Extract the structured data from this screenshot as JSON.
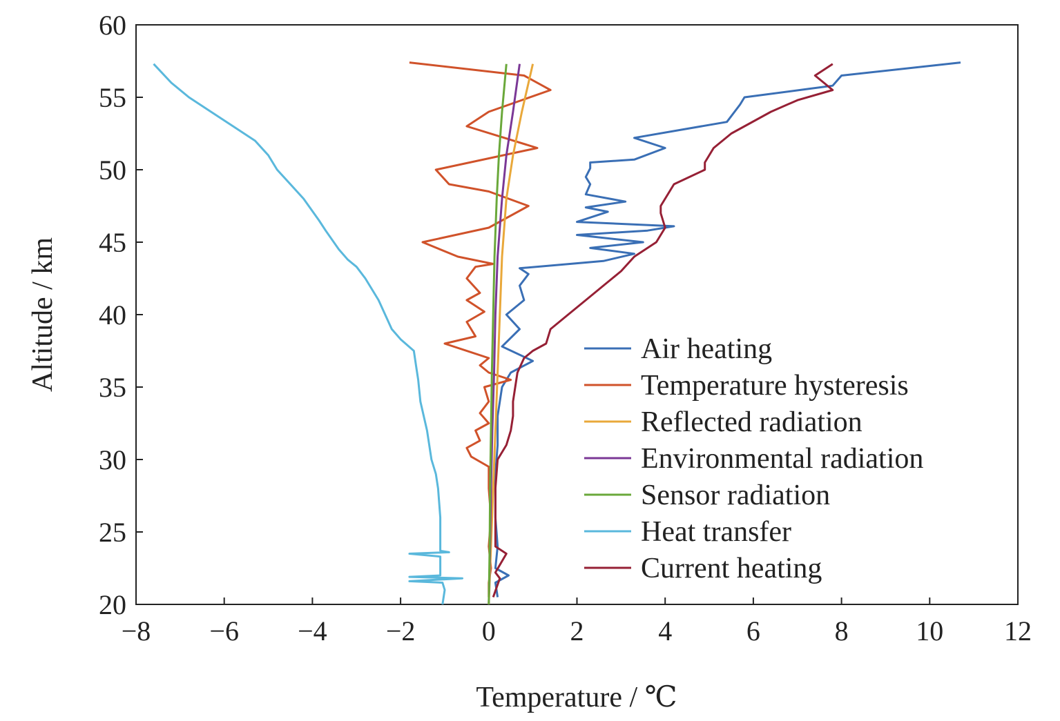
{
  "chart_data": {
    "type": "line",
    "title": "",
    "xlabel": "Temperature / ℃",
    "ylabel": "Altitude / km",
    "xlim": [
      -8,
      12
    ],
    "ylim": [
      20,
      60
    ],
    "xticks": [
      -8,
      -6,
      -4,
      -2,
      0,
      2,
      4,
      6,
      8,
      10,
      12
    ],
    "yticks": [
      20,
      25,
      30,
      35,
      40,
      45,
      50,
      55,
      60
    ],
    "x_tick_labels": [
      "−8",
      "−6",
      "−4",
      "−2",
      "0",
      "2",
      "4",
      "6",
      "8",
      "10",
      "12"
    ],
    "y_tick_labels": [
      "20",
      "25",
      "30",
      "35",
      "40",
      "45",
      "50",
      "55",
      "60"
    ],
    "grid": false,
    "legend_position": "lower-right",
    "series": [
      {
        "name": "Air heating",
        "color": "#3a6fb5",
        "points": [
          [
            0.2,
            20.5
          ],
          [
            0.15,
            21.5
          ],
          [
            0.45,
            22.0
          ],
          [
            0.15,
            22.5
          ],
          [
            0.2,
            24
          ],
          [
            0.15,
            26
          ],
          [
            0.15,
            29
          ],
          [
            0.2,
            31
          ],
          [
            0.2,
            33
          ],
          [
            0.3,
            35
          ],
          [
            0.5,
            36
          ],
          [
            1.0,
            36.8
          ],
          [
            0.3,
            37.8
          ],
          [
            0.7,
            39
          ],
          [
            0.4,
            40
          ],
          [
            0.8,
            41
          ],
          [
            0.7,
            42
          ],
          [
            0.9,
            42.8
          ],
          [
            0.7,
            43.2
          ],
          [
            2.6,
            43.7
          ],
          [
            3.3,
            44.2
          ],
          [
            2.3,
            44.6
          ],
          [
            3.5,
            45
          ],
          [
            2.0,
            45.5
          ],
          [
            3.6,
            45.8
          ],
          [
            4.2,
            46.1
          ],
          [
            2.0,
            46.4
          ],
          [
            2.7,
            47.1
          ],
          [
            2.2,
            47.4
          ],
          [
            3.1,
            47.8
          ],
          [
            2.2,
            48.3
          ],
          [
            2.3,
            49
          ],
          [
            2.2,
            49.5
          ],
          [
            2.3,
            50.1
          ],
          [
            2.3,
            50.5
          ],
          [
            3.3,
            50.7
          ],
          [
            4.0,
            51.5
          ],
          [
            3.3,
            52.2
          ],
          [
            5.4,
            53.3
          ],
          [
            5.7,
            54.5
          ],
          [
            5.8,
            55.0
          ],
          [
            7.8,
            55.8
          ],
          [
            8.0,
            56.5
          ],
          [
            10.7,
            57.4
          ]
        ]
      },
      {
        "name": "Temperature hysteresis",
        "color": "#d0522a",
        "points": [
          [
            0.0,
            20.5
          ],
          [
            0.0,
            21.5
          ],
          [
            0.05,
            22.5
          ],
          [
            0.0,
            24
          ],
          [
            0.05,
            26
          ],
          [
            0.0,
            28
          ],
          [
            0.0,
            29.5
          ],
          [
            -0.4,
            30.2
          ],
          [
            -0.5,
            30.8
          ],
          [
            -0.2,
            31.3
          ],
          [
            -0.3,
            32.0
          ],
          [
            0.0,
            32.5
          ],
          [
            -0.2,
            33.2
          ],
          [
            0.0,
            34.0
          ],
          [
            -0.1,
            35.0
          ],
          [
            0.5,
            35.5
          ],
          [
            0.0,
            36.0
          ],
          [
            -0.2,
            36.5
          ],
          [
            0.0,
            37.0
          ],
          [
            -1.0,
            38.0
          ],
          [
            -0.3,
            38.5
          ],
          [
            -0.5,
            39.5
          ],
          [
            -0.1,
            40.2
          ],
          [
            -0.5,
            41.0
          ],
          [
            -0.2,
            41.5
          ],
          [
            -0.5,
            42.5
          ],
          [
            -0.3,
            43.3
          ],
          [
            0.1,
            43.5
          ],
          [
            -0.7,
            44.0
          ],
          [
            -1.5,
            45.0
          ],
          [
            0.0,
            46.0
          ],
          [
            0.9,
            47.5
          ],
          [
            0.0,
            48.5
          ],
          [
            -0.9,
            49.0
          ],
          [
            -1.2,
            50.0
          ],
          [
            1.1,
            51.5
          ],
          [
            -0.5,
            53.0
          ],
          [
            0.0,
            54.0
          ],
          [
            1.4,
            55.5
          ],
          [
            0.8,
            56.5
          ],
          [
            -1.8,
            57.4
          ]
        ]
      },
      {
        "name": "Reflected radiation",
        "color": "#e9a83a",
        "points": [
          [
            0.0,
            20
          ],
          [
            0.05,
            24
          ],
          [
            0.1,
            28
          ],
          [
            0.15,
            32
          ],
          [
            0.2,
            36
          ],
          [
            0.25,
            40
          ],
          [
            0.3,
            44
          ],
          [
            0.4,
            48
          ],
          [
            0.55,
            51
          ],
          [
            0.75,
            54
          ],
          [
            1.0,
            57.3
          ]
        ]
      },
      {
        "name": "Environmental radiation",
        "color": "#7b3896",
        "points": [
          [
            0.0,
            20
          ],
          [
            0.03,
            24
          ],
          [
            0.05,
            28
          ],
          [
            0.08,
            32
          ],
          [
            0.12,
            36
          ],
          [
            0.15,
            40
          ],
          [
            0.2,
            44
          ],
          [
            0.3,
            48
          ],
          [
            0.4,
            51
          ],
          [
            0.55,
            54
          ],
          [
            0.7,
            57.3
          ]
        ]
      },
      {
        "name": "Sensor radiation",
        "color": "#6aa83a",
        "points": [
          [
            0.0,
            20
          ],
          [
            0.02,
            24
          ],
          [
            0.03,
            28
          ],
          [
            0.05,
            32
          ],
          [
            0.07,
            36
          ],
          [
            0.1,
            40
          ],
          [
            0.13,
            44
          ],
          [
            0.18,
            48
          ],
          [
            0.23,
            51
          ],
          [
            0.3,
            54
          ],
          [
            0.4,
            57.3
          ]
        ]
      },
      {
        "name": "Heat transfer",
        "color": "#5ab8dc",
        "points": [
          [
            -1.05,
            20.0
          ],
          [
            -1.0,
            21.0
          ],
          [
            -1.05,
            21.5
          ],
          [
            -1.8,
            21.6
          ],
          [
            -0.6,
            21.8
          ],
          [
            -1.8,
            21.9
          ],
          [
            -1.1,
            22.0
          ],
          [
            -1.1,
            23.3
          ],
          [
            -1.8,
            23.5
          ],
          [
            -0.9,
            23.6
          ],
          [
            -1.1,
            23.7
          ],
          [
            -1.1,
            26.0
          ],
          [
            -1.15,
            28.0
          ],
          [
            -1.2,
            29.0
          ],
          [
            -1.3,
            30.0
          ],
          [
            -1.4,
            32.0
          ],
          [
            -1.55,
            34.0
          ],
          [
            -1.6,
            35.5
          ],
          [
            -1.65,
            36.5
          ],
          [
            -1.7,
            37.5
          ],
          [
            -2.0,
            38.3
          ],
          [
            -2.2,
            39.0
          ],
          [
            -2.5,
            41.0
          ],
          [
            -2.8,
            42.5
          ],
          [
            -3.0,
            43.3
          ],
          [
            -3.2,
            43.8
          ],
          [
            -3.4,
            44.5
          ],
          [
            -3.7,
            45.8
          ],
          [
            -3.85,
            46.5
          ],
          [
            -4.2,
            48.0
          ],
          [
            -4.5,
            49.0
          ],
          [
            -4.8,
            50.0
          ],
          [
            -5.0,
            51.0
          ],
          [
            -5.3,
            52.0
          ],
          [
            -5.8,
            53.0
          ],
          [
            -6.3,
            54.0
          ],
          [
            -6.8,
            55.0
          ],
          [
            -7.2,
            56.0
          ],
          [
            -7.6,
            57.3
          ]
        ]
      },
      {
        "name": "Current heating",
        "color": "#962035",
        "points": [
          [
            0.1,
            20.5
          ],
          [
            0.25,
            21.8
          ],
          [
            0.15,
            22.2
          ],
          [
            0.4,
            23.5
          ],
          [
            0.15,
            24
          ],
          [
            0.15,
            26
          ],
          [
            0.15,
            28
          ],
          [
            0.2,
            30
          ],
          [
            0.4,
            31
          ],
          [
            0.5,
            32
          ],
          [
            0.55,
            33
          ],
          [
            0.55,
            34
          ],
          [
            0.6,
            35
          ],
          [
            0.65,
            36
          ],
          [
            0.8,
            37
          ],
          [
            1.0,
            37.5
          ],
          [
            1.3,
            38
          ],
          [
            1.4,
            39
          ],
          [
            1.8,
            40
          ],
          [
            2.2,
            41
          ],
          [
            2.6,
            42
          ],
          [
            2.8,
            42.5
          ],
          [
            3.0,
            43.0
          ],
          [
            3.3,
            44.0
          ],
          [
            3.8,
            45.0
          ],
          [
            4.0,
            46.0
          ],
          [
            3.9,
            47.0
          ],
          [
            3.9,
            47.5
          ],
          [
            4.0,
            48.0
          ],
          [
            4.2,
            49.0
          ],
          [
            4.9,
            50.0
          ],
          [
            4.9,
            50.5
          ],
          [
            5.1,
            51.5
          ],
          [
            5.5,
            52.5
          ],
          [
            6.4,
            54.0
          ],
          [
            7.0,
            54.8
          ],
          [
            7.8,
            55.5
          ],
          [
            7.6,
            56.0
          ],
          [
            7.4,
            56.5
          ],
          [
            7.8,
            57.3
          ]
        ]
      }
    ]
  }
}
